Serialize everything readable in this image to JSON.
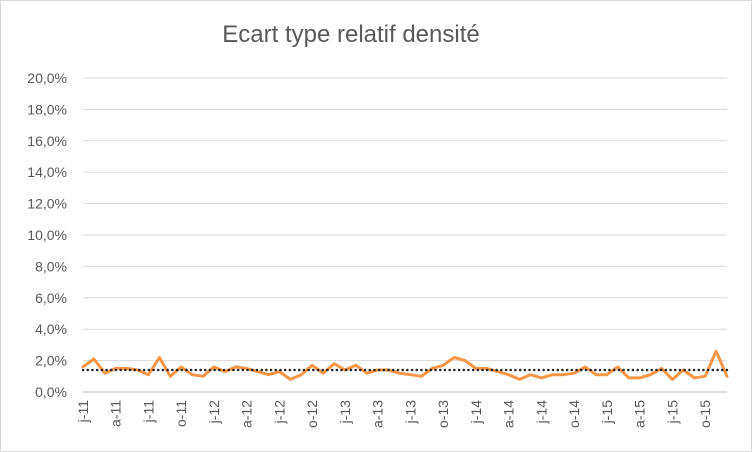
{
  "chart_data": {
    "type": "line",
    "title": "Ecart type relatif densité",
    "xlabel": "",
    "ylabel": "",
    "ylim": [
      0,
      20
    ],
    "y_ticks": [
      "0,0%",
      "2,0%",
      "4,0%",
      "6,0%",
      "8,0%",
      "10,0%",
      "12,0%",
      "14,0%",
      "16,0%",
      "18,0%",
      "20,0%"
    ],
    "x_tick_labels": [
      "j-11",
      "a-11",
      "j-11",
      "o-11",
      "j-12",
      "a-12",
      "j-12",
      "o-12",
      "j-13",
      "a-13",
      "j-13",
      "o-13",
      "j-14",
      "a-14",
      "j-14",
      "o-14",
      "j-15",
      "a-15",
      "j-15",
      "o-15"
    ],
    "x_tick_positions": [
      0,
      3,
      6,
      9,
      12,
      15,
      18,
      21,
      24,
      27,
      30,
      33,
      36,
      39,
      42,
      45,
      48,
      51,
      54,
      57
    ],
    "grid": true,
    "legend": "none",
    "series": [
      {
        "color": "#f79646",
        "style": "solid",
        "values": [
          1.6,
          2.1,
          1.2,
          1.5,
          1.5,
          1.4,
          1.1,
          2.2,
          1.0,
          1.6,
          1.1,
          1.0,
          1.6,
          1.3,
          1.6,
          1.5,
          1.3,
          1.1,
          1.3,
          0.8,
          1.1,
          1.7,
          1.2,
          1.8,
          1.4,
          1.7,
          1.2,
          1.4,
          1.4,
          1.2,
          1.1,
          1.0,
          1.5,
          1.7,
          2.2,
          2.0,
          1.5,
          1.5,
          1.3,
          1.1,
          0.8,
          1.1,
          0.9,
          1.1,
          1.1,
          1.2,
          1.6,
          1.1,
          1.1,
          1.6,
          0.9,
          0.9,
          1.1,
          1.5,
          0.8,
          1.4,
          0.9,
          1.0,
          2.6,
          1.0
        ]
      },
      {
        "color": "#262626",
        "style": "dotted",
        "values": [
          1.4,
          1.4
        ]
      }
    ]
  }
}
